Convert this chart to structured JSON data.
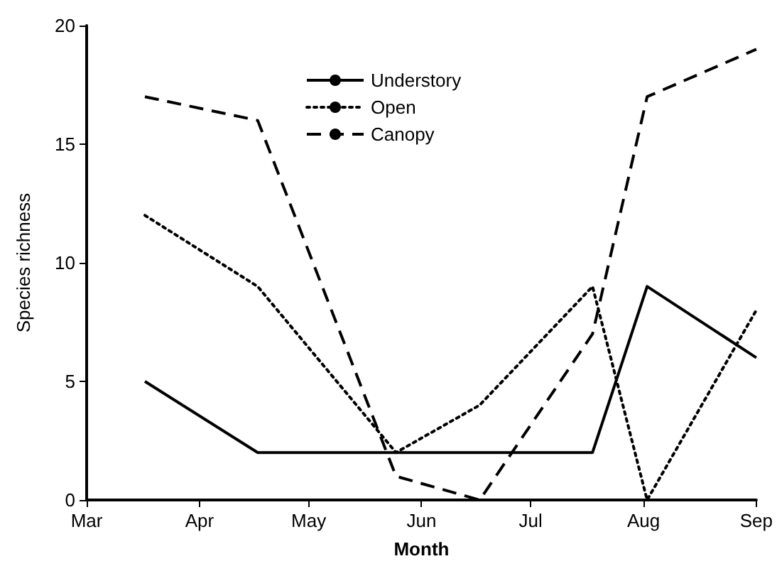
{
  "chart_data": {
    "type": "line",
    "xlabel": "Month",
    "ylabel": "Species richness",
    "x": [
      "--03-17",
      "--04-17",
      "--05-25",
      "--06-17",
      "--07-18",
      "--08-02",
      "--09-01"
    ],
    "series": [
      {
        "name": "Understory",
        "color": "#000000",
        "line_style": "solid",
        "values": [
          5,
          2,
          2,
          2,
          2,
          9,
          6
        ]
      },
      {
        "name": "Open",
        "color": "#000000",
        "line_style": "dotted",
        "values": [
          12,
          9,
          2,
          4,
          9,
          0,
          8
        ]
      },
      {
        "name": "Canopy",
        "color": "#000000",
        "line_style": "dashed",
        "values": [
          17,
          16,
          1,
          0,
          7,
          17,
          19
        ]
      }
    ],
    "xlim": [
      "--03-01",
      "--09-01"
    ],
    "xticks": [
      {
        "value": "--03-01",
        "label": "Mar"
      },
      {
        "value": "--04-01",
        "label": "Apr"
      },
      {
        "value": "--05-01",
        "label": "May"
      },
      {
        "value": "--06-01",
        "label": "Jun"
      },
      {
        "value": "--07-01",
        "label": "Jul"
      },
      {
        "value": "--08-01",
        "label": "Aug"
      },
      {
        "value": "--09-01",
        "label": "Sep"
      }
    ],
    "ylim": [
      0,
      20
    ],
    "yticks": [
      0,
      5,
      10,
      15,
      20
    ],
    "grid": false,
    "legend": "top",
    "marker": "none"
  }
}
